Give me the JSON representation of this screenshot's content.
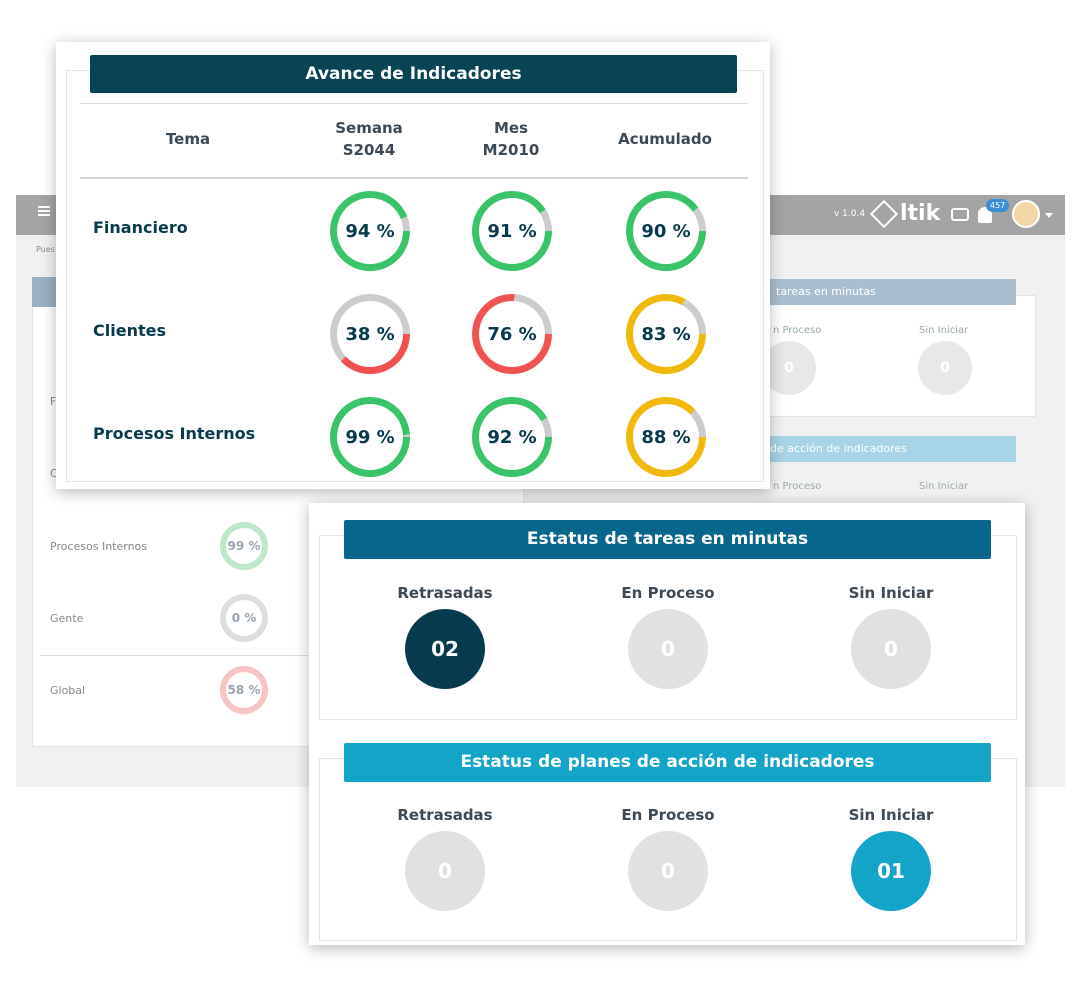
{
  "background": {
    "version": "v 1.0.4",
    "brand": "ltik",
    "notifications": "457",
    "breadcrumb": "Pues",
    "rows": [
      "F",
      "C",
      "Procesos Internos",
      "Gente",
      "Global"
    ],
    "rings": [
      "99 %",
      "0 %",
      "58 %"
    ],
    "right_header_1": "tareas en minutas",
    "right_header_2": "de acción de indicadores",
    "right_labels_1": [
      "n Proceso",
      "Sin Iniciar"
    ],
    "right_labels_2": [
      "n Proceso",
      "Sin Iniciar"
    ],
    "right_values_1": [
      "0",
      "0"
    ],
    "right_partial_label": "Retrasadas"
  },
  "indicators": {
    "title": "Avance de Indicadores",
    "columns": {
      "tema": "Tema",
      "semana_1": "Semana",
      "semana_2": "S2044",
      "mes_1": "Mes",
      "mes_2": "M2010",
      "acumulado": "Acumulado"
    },
    "rows": [
      {
        "label": "Financiero",
        "values": [
          {
            "text": "94 %",
            "pct": 94,
            "color": "#3bc36a"
          },
          {
            "text": "91 %",
            "pct": 91,
            "color": "#3bc36a"
          },
          {
            "text": "90 %",
            "pct": 90,
            "color": "#3bc36a"
          }
        ]
      },
      {
        "label": "Clientes",
        "values": [
          {
            "text": "38 %",
            "pct": 38,
            "color": "#f05252"
          },
          {
            "text": "76 %",
            "pct": 76,
            "color": "#f05252"
          },
          {
            "text": "83 %",
            "pct": 83,
            "color": "#f0b90c"
          }
        ]
      },
      {
        "label": "Procesos Internos",
        "values": [
          {
            "text": "99 %",
            "pct": 99,
            "color": "#3bc36a"
          },
          {
            "text": "92 %",
            "pct": 92,
            "color": "#3bc36a"
          },
          {
            "text": "88 %",
            "pct": 88,
            "color": "#f0b90c"
          }
        ]
      }
    ],
    "track_color": "#cccccc"
  },
  "status_tasks": {
    "title": "Estatus de tareas en minutas",
    "items": [
      {
        "label": "Retrasadas",
        "value": "02",
        "color": "#083a4e"
      },
      {
        "label": "En Proceso",
        "value": "0",
        "color": "#e1e1e1"
      },
      {
        "label": "Sin Iniciar",
        "value": "0",
        "color": "#e1e1e1"
      }
    ]
  },
  "status_plans": {
    "title": "Estatus de planes de acción de indicadores",
    "items": [
      {
        "label": "Retrasadas",
        "value": "0",
        "color": "#e1e1e1"
      },
      {
        "label": "En Proceso",
        "value": "0",
        "color": "#e1e1e1"
      },
      {
        "label": "Sin Iniciar",
        "value": "01",
        "color": "#14a4c8"
      }
    ]
  }
}
